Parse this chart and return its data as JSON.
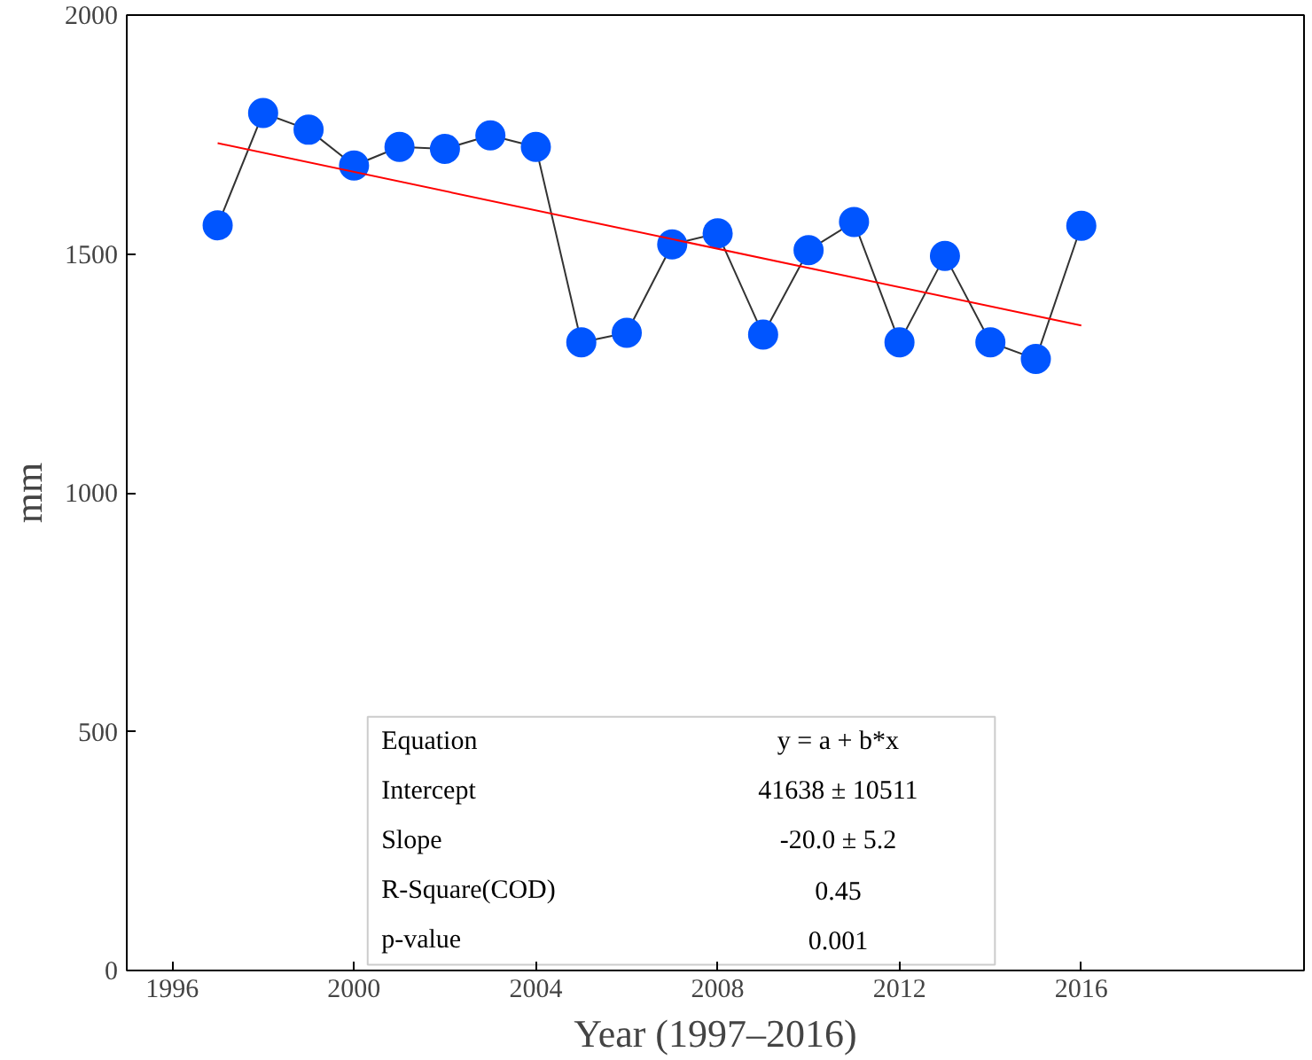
{
  "chart_data": {
    "type": "line",
    "xlabel": "Year (1997–2016)",
    "ylabel": "mm",
    "x": [
      1997,
      1998,
      1999,
      2000,
      2001,
      2002,
      2003,
      2004,
      2005,
      2006,
      2007,
      2008,
      2009,
      2010,
      2011,
      2012,
      2013,
      2014,
      2015,
      2016
    ],
    "series": [
      {
        "color": "#0055ff",
        "marker": "circle",
        "values": [
          1560,
          1795,
          1760,
          1685,
          1724,
          1720,
          1748,
          1724,
          1315,
          1335,
          1520,
          1543,
          1331,
          1508,
          1567,
          1315,
          1496,
          1315,
          1280,
          1559
        ]
      },
      {
        "type": "line",
        "color": "#ff0000",
        "marker": "none",
        "x": [
          1997,
          2016
        ],
        "values": [
          1732,
          1350
        ]
      }
    ],
    "xlim": [
      1995,
      2020.9
    ],
    "ylim": [
      0,
      2000
    ],
    "xticks": [
      1996,
      2000,
      2004,
      2008,
      2012,
      2016
    ],
    "yticks": [
      0,
      500,
      1000,
      1500,
      2000
    ],
    "grid": false,
    "annotations": [
      "Equation",
      "y = a + b*x",
      "Intercept",
      "41638 ± 10511",
      "Slope",
      "-20.0 ± 5.2",
      "R-Square(COD)",
      "0.45",
      "p-value",
      "0.001"
    ]
  }
}
